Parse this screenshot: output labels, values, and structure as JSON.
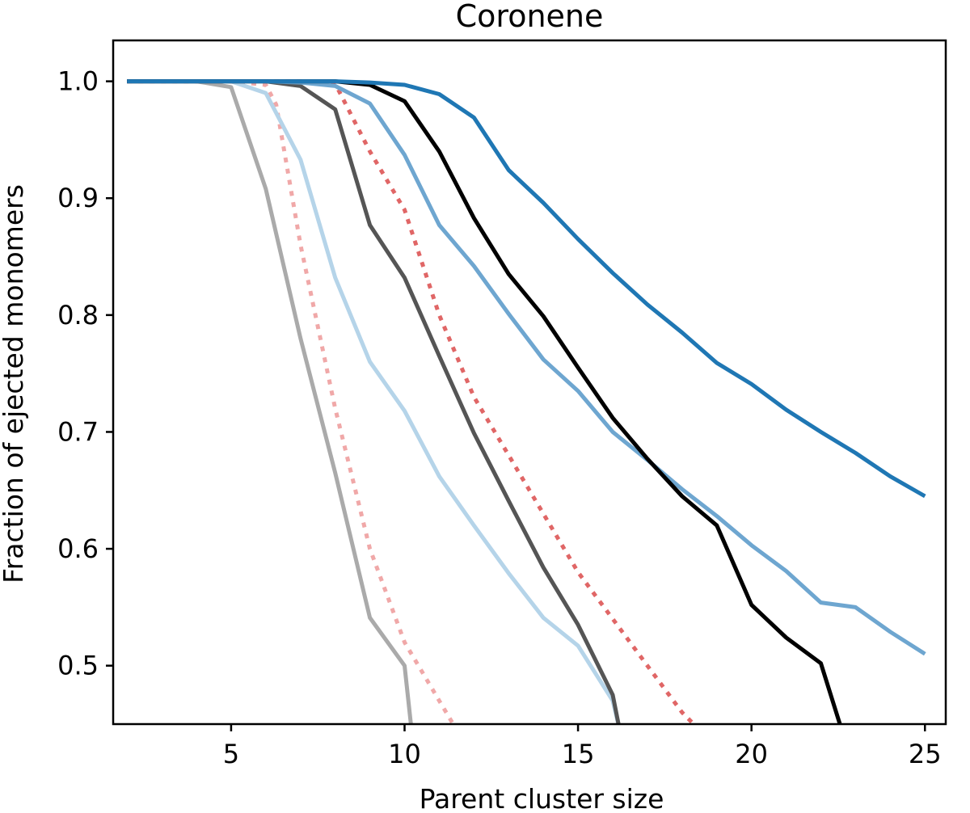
{
  "chart_data": {
    "type": "line",
    "title": "Coronene",
    "xlabel": "Parent cluster size",
    "ylabel": "Fraction of ejected monomers",
    "xlim": [
      1.6,
      25.6
    ],
    "ylim": [
      0.45,
      1.035
    ],
    "x_ticks": [
      5,
      10,
      15,
      20,
      25
    ],
    "x_tick_labels": [
      "5",
      "10",
      "15",
      "20",
      "25"
    ],
    "y_ticks": [
      0.5,
      0.6,
      0.7,
      0.8,
      0.9,
      1.0
    ],
    "y_tick_labels": [
      "0.5",
      "0.6",
      "0.7",
      "0.8",
      "0.9",
      "1.0"
    ],
    "grid": false,
    "series": [
      {
        "name": "gray",
        "color": "#aaaaaa",
        "style": "solid",
        "x": [
          2,
          3,
          4,
          5,
          6,
          7,
          8,
          9,
          10,
          10.2
        ],
        "y": [
          1.0,
          1.0,
          1.0,
          0.995,
          0.908,
          0.78,
          0.665,
          0.541,
          0.5,
          0.445
        ]
      },
      {
        "name": "light-red-dotted",
        "color": "#f0a8a8",
        "style": "dotted",
        "x": [
          2,
          3,
          4,
          5,
          6,
          6.3,
          7,
          8,
          9,
          10,
          11,
          11.5
        ],
        "y": [
          1.0,
          1.0,
          1.0,
          1.0,
          0.997,
          0.98,
          0.86,
          0.72,
          0.6,
          0.52,
          0.47,
          0.445
        ]
      },
      {
        "name": "light-blue",
        "color": "#b5d4e9",
        "style": "solid",
        "x": [
          2,
          3,
          4,
          5,
          6,
          7,
          8,
          9,
          10,
          11,
          12,
          13,
          14,
          15,
          16,
          16.2
        ],
        "y": [
          1.0,
          1.0,
          1.0,
          1.0,
          0.99,
          0.933,
          0.832,
          0.76,
          0.718,
          0.662,
          0.62,
          0.579,
          0.541,
          0.517,
          0.47,
          0.445
        ]
      },
      {
        "name": "dark-gray",
        "color": "#555555",
        "style": "solid",
        "x": [
          2,
          3,
          4,
          5,
          6,
          7,
          8,
          9,
          10,
          11,
          12,
          13,
          14,
          15,
          16,
          16.2
        ],
        "y": [
          1.0,
          1.0,
          1.0,
          1.0,
          1.0,
          0.996,
          0.976,
          0.877,
          0.832,
          0.765,
          0.699,
          0.641,
          0.584,
          0.535,
          0.475,
          0.445
        ]
      },
      {
        "name": "red-dotted",
        "color": "#e06666",
        "style": "dotted",
        "x": [
          2,
          3,
          4,
          5,
          6,
          7,
          8,
          9,
          10,
          11,
          12,
          13,
          14,
          15,
          16,
          17,
          18,
          18.5
        ],
        "y": [
          1.0,
          1.0,
          1.0,
          1.0,
          1.0,
          1.0,
          0.998,
          0.94,
          0.89,
          0.8,
          0.73,
          0.68,
          0.63,
          0.58,
          0.54,
          0.5,
          0.46,
          0.445
        ]
      },
      {
        "name": "medium-blue",
        "color": "#6ea6d0",
        "style": "solid",
        "x": [
          2,
          3,
          4,
          5,
          6,
          7,
          8,
          9,
          10,
          11,
          12,
          13,
          14,
          15,
          16,
          17,
          18,
          19,
          20,
          21,
          22,
          23,
          24,
          25
        ],
        "y": [
          1.0,
          1.0,
          1.0,
          1.0,
          1.0,
          0.999,
          0.996,
          0.981,
          0.937,
          0.877,
          0.842,
          0.801,
          0.762,
          0.735,
          0.7,
          0.676,
          0.651,
          0.628,
          0.603,
          0.581,
          0.554,
          0.55,
          0.529,
          0.51
        ]
      },
      {
        "name": "black",
        "color": "#000000",
        "style": "solid",
        "x": [
          2,
          3,
          4,
          5,
          6,
          7,
          8,
          9,
          10,
          11,
          12,
          13,
          14,
          15,
          16,
          17,
          18,
          19,
          20,
          21,
          22,
          22.6
        ],
        "y": [
          1.0,
          1.0,
          1.0,
          1.0,
          1.0,
          1.0,
          1.0,
          0.997,
          0.983,
          0.94,
          0.883,
          0.835,
          0.799,
          0.755,
          0.712,
          0.677,
          0.645,
          0.62,
          0.552,
          0.524,
          0.502,
          0.445
        ]
      },
      {
        "name": "dark-blue",
        "color": "#1f77b4",
        "style": "solid",
        "x": [
          2,
          3,
          4,
          5,
          6,
          7,
          8,
          9,
          10,
          11,
          12,
          13,
          14,
          15,
          16,
          17,
          18,
          19,
          20,
          21,
          22,
          23,
          24,
          25
        ],
        "y": [
          1.0,
          1.0,
          1.0,
          1.0,
          1.0,
          1.0,
          1.0,
          0.999,
          0.997,
          0.989,
          0.969,
          0.924,
          0.896,
          0.865,
          0.836,
          0.809,
          0.785,
          0.759,
          0.741,
          0.719,
          0.7,
          0.682,
          0.662,
          0.645
        ]
      }
    ]
  }
}
